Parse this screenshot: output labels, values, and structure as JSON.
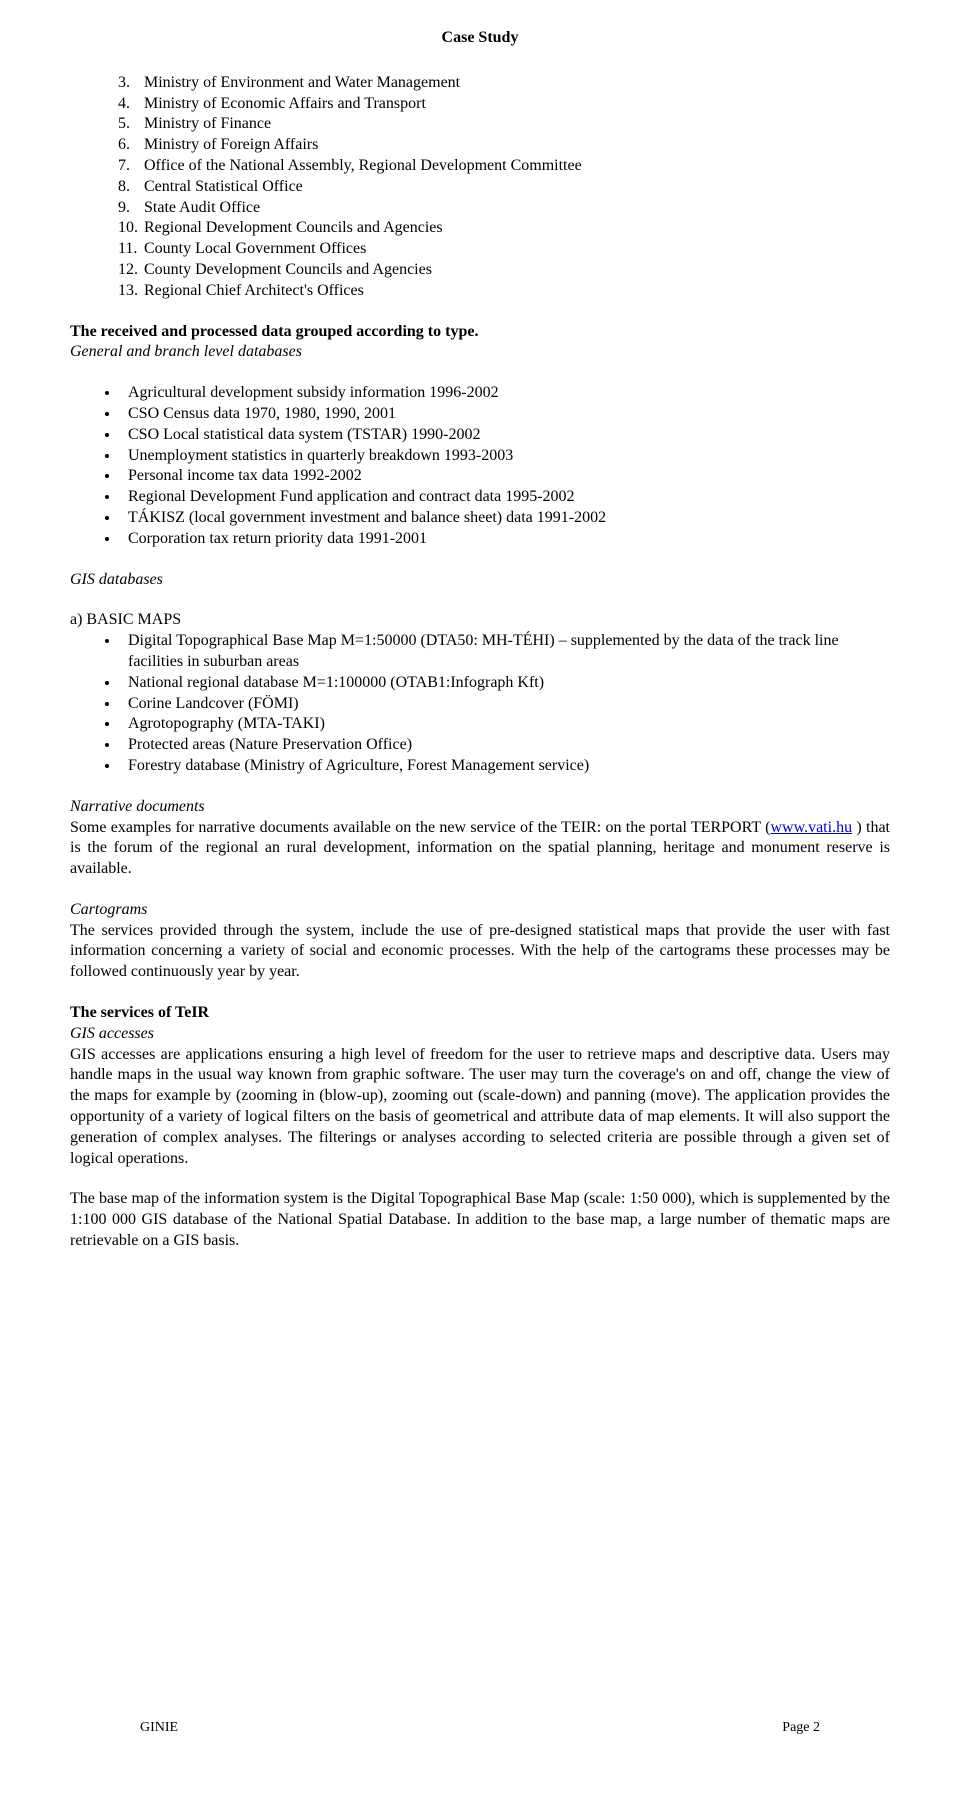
{
  "header": {
    "title": "Case Study"
  },
  "numbered": {
    "start": 3,
    "items": [
      "Ministry of Environment and Water Management",
      "Ministry of Economic Affairs and Transport",
      "Ministry of Finance",
      "Ministry of Foreign Affairs",
      "Office of the National Assembly, Regional Development Committee",
      "Central Statistical Office",
      "State Audit Office",
      "Regional Development Councils and Agencies",
      "County Local Government Offices",
      "County Development Councils and Agencies",
      "Regional Chief Architect's Offices"
    ]
  },
  "grouped": {
    "heading": "The received and processed data grouped according to type.",
    "subheading": "General and branch level databases"
  },
  "general_bullets": [
    "Agricultural development subsidy information 1996-2002",
    "CSO Census data 1970, 1980, 1990, 2001",
    "CSO Local statistical data system (TSTAR) 1990-2002",
    "Unemployment statistics in quarterly breakdown 1993-2003",
    "Personal income tax data 1992-2002",
    "Regional Development Fund application and contract data 1995-2002",
    "TÁKISZ (local government investment and balance sheet) data 1991-2002",
    "Corporation tax return priority data 1991-2001"
  ],
  "gis": {
    "heading": "GIS databases",
    "basic_maps_label": "a) BASIC MAPS",
    "bullets": [
      "Digital Topographical Base Map M=1:50000 (DTA50:  MH-TÉHI) – supplemented by the data of the track line facilities in suburban areas",
      "National regional database M=1:100000 (OTAB1:Infograph Kft)",
      "Corine Landcover (FÖMI)",
      "Agrotopography (MTA-TAKI)",
      "Protected areas (Nature Preservation Office)",
      "Forestry database (Ministry of Agriculture, Forest Management service)"
    ]
  },
  "narrative": {
    "heading": "Narrative documents",
    "text_pre": "Some examples for narrative documents available on the new service of the TEIR: on the portal TERPORT (",
    "link_text": "www.vati.hu",
    "text_post": " ) that is the forum of the regional an rural development, information on the spatial planning, heritage and monument reserve is available."
  },
  "cartograms": {
    "heading": "Cartograms",
    "text": "The services provided through the system, include the use of pre-designed statistical maps that provide the user with fast information concerning a variety of social and economic processes. With the help of the cartograms these processes may be followed continuously year by year."
  },
  "services": {
    "heading": "The services of TeIR",
    "subheading": "GIS accesses",
    "text": "GIS accesses are applications ensuring a high level of freedom for the user to retrieve maps and descriptive data. Users may handle maps in the usual way known from graphic software. The user may turn the coverage's on and off, change the view of the maps for example by (zooming in (blow-up), zooming out (scale-down) and panning (move). The application provides the opportunity of a variety of logical filters on the basis of geometrical and attribute data of map elements. It will also support the generation of complex analyses. The filterings or analyses according to selected criteria are possible through a given set of logical operations."
  },
  "basemap": {
    "text": "The base map of the information system is the Digital Topographical Base Map (scale: 1:50 000), which is supplemented by the 1:100 000 GIS database of the National Spatial Database. In addition to the base map, a large number of thematic maps are retrievable on a GIS basis."
  },
  "footer": {
    "left": "GINIE",
    "right": "Page 2"
  }
}
